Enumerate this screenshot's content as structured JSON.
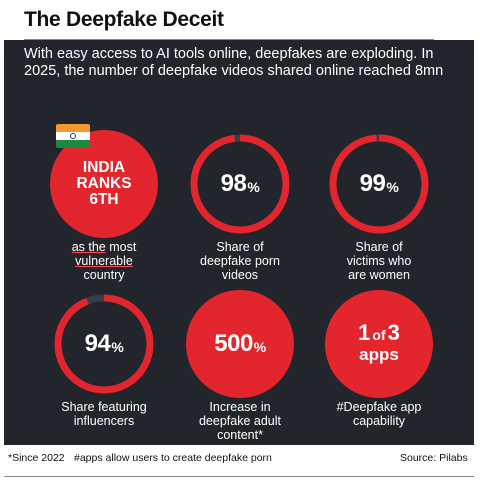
{
  "header": {
    "title": "The Deepfake Deceit",
    "intro": "With easy access to AI tools online, deepfakes are exploding. In 2025, the number of deepfake videos shared online reached 8mn"
  },
  "colors": {
    "accent": "#e3262d",
    "panel": "#22252b",
    "text": "#ffffff"
  },
  "stats": {
    "india": {
      "lines": [
        "INDIA",
        "RANKS",
        "6TH"
      ],
      "caption_underlined": "as the",
      "caption_rest": " most",
      "caption_underlined_2": "vulnerable",
      "caption_line3": "country",
      "flag_icon": "india-flag-icon"
    },
    "porn": {
      "value": "98",
      "unit": "%",
      "fraction": 0.98,
      "caption": [
        "Share of",
        "deepfake porn",
        "videos"
      ]
    },
    "women": {
      "value": "99",
      "unit": "%",
      "fraction": 0.99,
      "caption": [
        "Share of",
        "victims who",
        "are women"
      ]
    },
    "influencers": {
      "value": "94",
      "unit": "%",
      "fraction": 0.94,
      "caption": [
        "Share featuring",
        "influencers"
      ]
    },
    "adult": {
      "value": "500",
      "unit": "%",
      "caption": [
        "Increase in",
        "deepfake adult",
        "content*"
      ]
    },
    "apps": {
      "num": "1",
      "of": "of",
      "den": "3",
      "word": "apps",
      "caption": [
        "#Deepfake app",
        "capability"
      ]
    }
  },
  "footer": {
    "note1": "*Since 2022",
    "note2": "#apps allow users to create deepfake porn",
    "source": "Source: Pilabs"
  }
}
